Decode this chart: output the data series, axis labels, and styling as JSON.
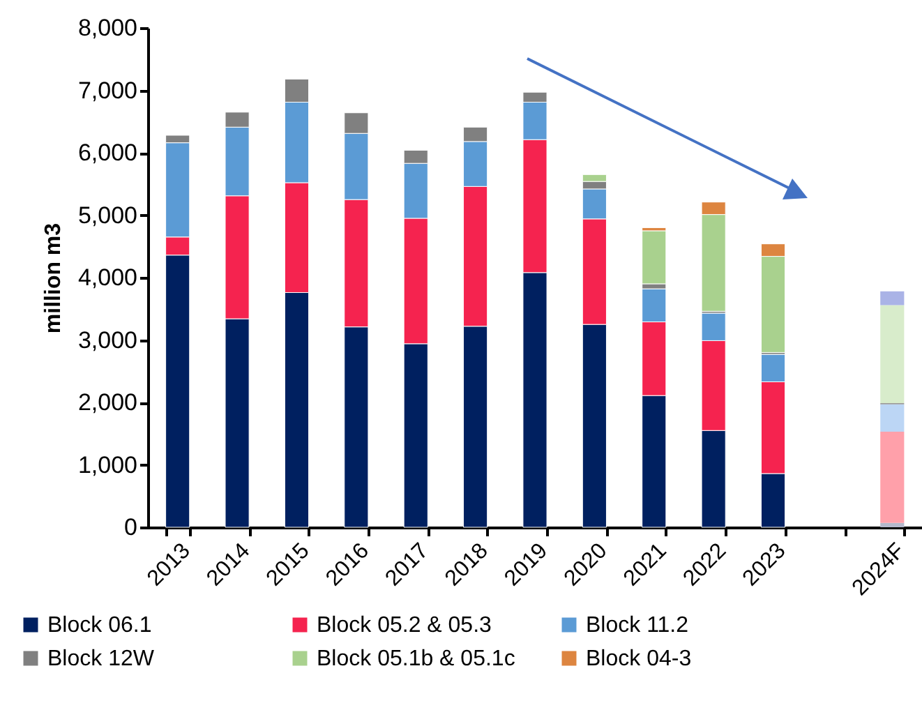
{
  "chart_data": {
    "type": "bar",
    "stacked": true,
    "ylabel": "million m3",
    "categories": [
      "2013",
      "2014",
      "2015",
      "2016",
      "2017",
      "2018",
      "2019",
      "2020",
      "2021",
      "2022",
      "2023",
      null,
      "2024F"
    ],
    "series": [
      {
        "name": "Block 06.1",
        "color": "#002060",
        "colors": [
          "#002060",
          "#002060",
          "#002060",
          "#002060",
          "#002060",
          "#002060",
          "#002060",
          "#002060",
          "#002060",
          "#002060",
          "#002060",
          null,
          "#b4b8cc"
        ],
        "values": [
          4360,
          3340,
          3760,
          3210,
          2940,
          3220,
          4080,
          3250,
          2110,
          1550,
          860,
          null,
          70
        ]
      },
      {
        "name": "Block 05.2 & 05.3",
        "color": "#f5234f",
        "colors": [
          "#f5234f",
          "#f5234f",
          "#f5234f",
          "#f5234f",
          "#f5234f",
          "#f5234f",
          "#f5234f",
          "#f5234f",
          "#f5234f",
          "#f5234f",
          "#f5234f",
          null,
          "#ffa0aa"
        ],
        "values": [
          290,
          1970,
          1760,
          2040,
          2010,
          2240,
          2130,
          1690,
          1180,
          1440,
          1470,
          null,
          1460
        ]
      },
      {
        "name": "Block 11.2",
        "color": "#5b9bd5",
        "colors": [
          "#5b9bd5",
          "#5b9bd5",
          "#5b9bd5",
          "#5b9bd5",
          "#5b9bd5",
          "#5b9bd5",
          "#5b9bd5",
          "#5b9bd5",
          "#5b9bd5",
          "#5b9bd5",
          "#5b9bd5",
          null,
          "#bcd6f5"
        ],
        "values": [
          1510,
          1100,
          1290,
          1060,
          880,
          720,
          600,
          480,
          530,
          440,
          440,
          null,
          440
        ]
      },
      {
        "name": "Block 12W",
        "color": "#808080",
        "colors": [
          "#808080",
          "#808080",
          "#808080",
          "#808080",
          "#808080",
          "#808080",
          "#808080",
          "#808080",
          "#808080",
          "#808080",
          "#808080",
          null,
          "#9a9a9a"
        ],
        "values": [
          120,
          240,
          370,
          330,
          210,
          230,
          160,
          120,
          80,
          30,
          30,
          null,
          20
        ]
      },
      {
        "name": "Block 05.1b & 05.1c",
        "color": "#a9d18e",
        "colors": [
          null,
          null,
          null,
          null,
          null,
          null,
          null,
          "#a9d18e",
          "#a9d18e",
          "#a9d18e",
          "#a9d18e",
          null,
          "#d8eccb"
        ],
        "values": [
          null,
          null,
          null,
          null,
          null,
          null,
          null,
          110,
          850,
          1550,
          1540,
          null,
          1570
        ]
      },
      {
        "name": "Block 04-3",
        "color": "#dd8540",
        "colors": [
          null,
          null,
          null,
          null,
          null,
          null,
          null,
          null,
          "#dd8540",
          "#dd8540",
          "#dd8540",
          null,
          "#aab3e6"
        ],
        "values": [
          null,
          null,
          null,
          null,
          null,
          null,
          null,
          null,
          50,
          200,
          200,
          null,
          220
        ]
      }
    ],
    "ylim": [
      0,
      8000
    ],
    "yticks": [
      0,
      {
        "value": 1000,
        "label": "1,000"
      },
      {
        "value": 2000,
        "label": "2,000"
      },
      {
        "value": 3000,
        "label": "3,000"
      },
      {
        "value": 4000,
        "label": "4,000"
      },
      {
        "value": 5000,
        "label": "5,000"
      },
      {
        "value": 6000,
        "label": "6,000"
      },
      {
        "value": 7000,
        "label": "7,000"
      },
      {
        "value": 8000,
        "label": "8,000"
      }
    ],
    "grid": false,
    "legend": "bottom"
  }
}
